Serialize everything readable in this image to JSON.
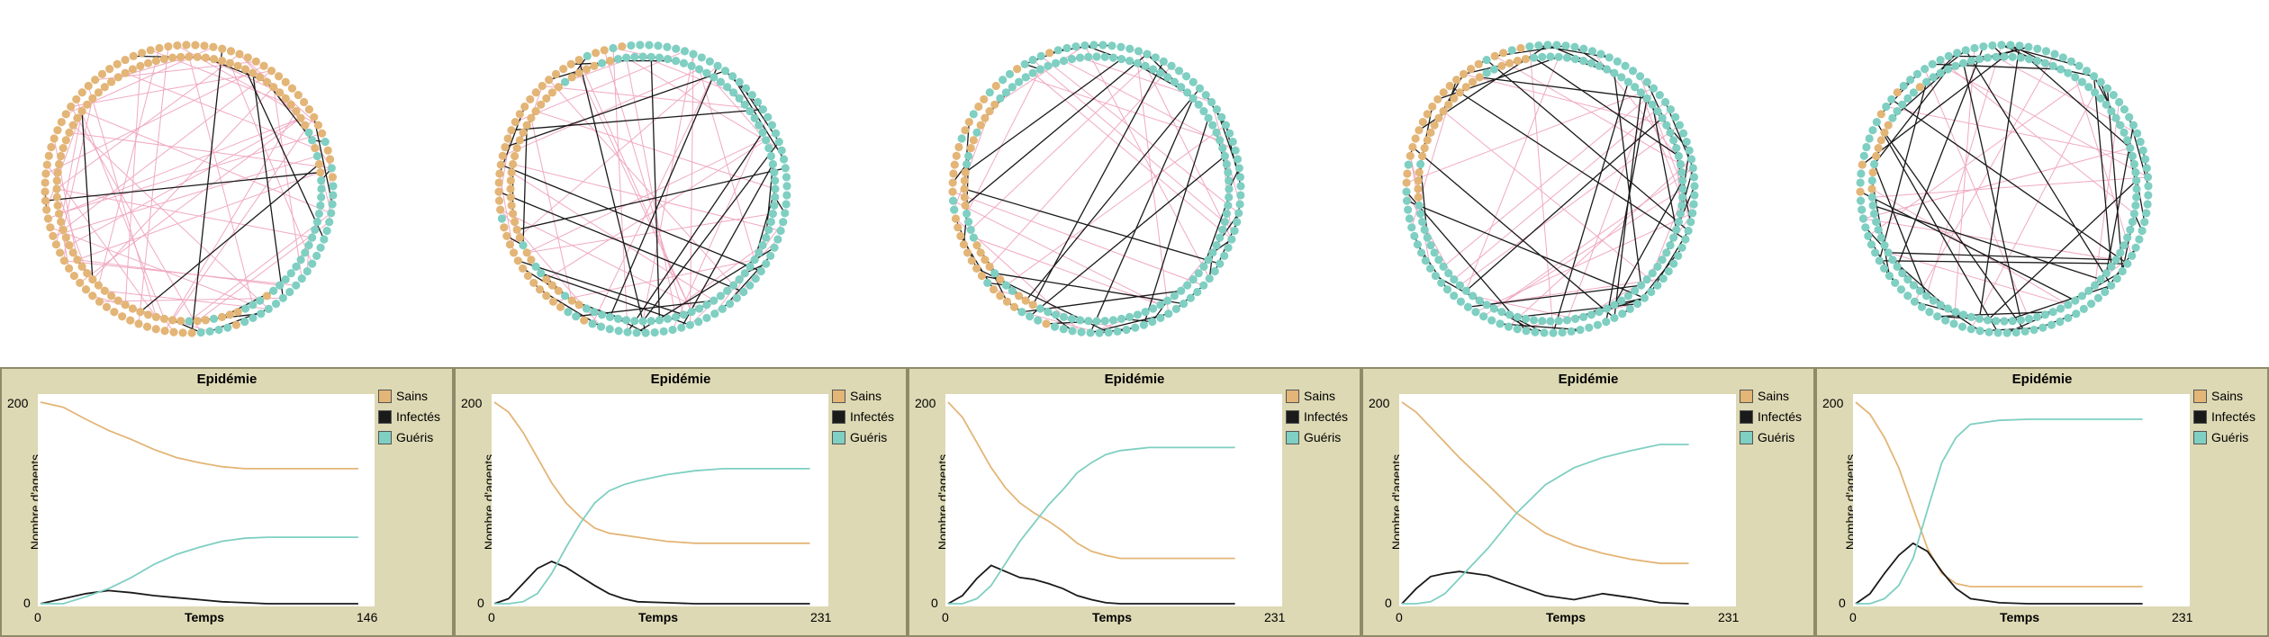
{
  "colors": {
    "sains": "#e3b577",
    "infectes": "#1a1a1a",
    "gueris": "#7fcfc2",
    "weak_link": "#f0a9c2",
    "strong_link": "#1a1a1a",
    "panel_bg": "#ddd9b4"
  },
  "panels": [
    {
      "title": "Epidémie",
      "ylabel": "Nombre d'agents",
      "xlabel": "Temps",
      "y_max_label": "200",
      "y_min_label": "0",
      "x_min_label": "0",
      "x_max_label": "146",
      "legend": [
        "Sains",
        "Infectés",
        "Guéris"
      ],
      "network": {
        "sains": 150,
        "gueris": 50,
        "strong_links": 18,
        "weak_links": 60
      }
    },
    {
      "title": "Epidémie",
      "ylabel": "Nombre d'agents",
      "xlabel": "Temps",
      "y_max_label": "200",
      "y_min_label": "0",
      "x_min_label": "0",
      "x_max_label": "231",
      "legend": [
        "Sains",
        "Infectés",
        "Guéris"
      ],
      "network": {
        "sains": 70,
        "gueris": 130,
        "strong_links": 45,
        "weak_links": 40
      }
    },
    {
      "title": "Epidémie",
      "ylabel": "Nombre d'agents",
      "xlabel": "Temps",
      "y_max_label": "200",
      "y_min_label": "0",
      "x_min_label": "0",
      "x_max_label": "231",
      "legend": [
        "Sains",
        "Infectés",
        "Guéris"
      ],
      "network": {
        "sains": 45,
        "gueris": 155,
        "strong_links": 55,
        "weak_links": 30
      }
    },
    {
      "title": "Epidémie",
      "ylabel": "Nombre d'agents",
      "xlabel": "Temps",
      "y_max_label": "200",
      "y_min_label": "0",
      "x_min_label": "0",
      "x_max_label": "231",
      "legend": [
        "Sains",
        "Infectés",
        "Guéris"
      ],
      "network": {
        "sains": 40,
        "gueris": 160,
        "strong_links": 55,
        "weak_links": 30
      }
    },
    {
      "title": "Epidémie",
      "ylabel": "Nombre d'agents",
      "xlabel": "Temps",
      "y_max_label": "200",
      "y_min_label": "0",
      "x_min_label": "0",
      "x_max_label": "231",
      "legend": [
        "Sains",
        "Infectés",
        "Guéris"
      ],
      "network": {
        "sains": 12,
        "gueris": 188,
        "strong_links": 65,
        "weak_links": 20
      }
    }
  ],
  "chart_data": [
    {
      "type": "line",
      "title": "Epidémie",
      "xlabel": "Temps",
      "ylabel": "Nombre d'agents",
      "xlim": [
        0,
        146
      ],
      "ylim": [
        0,
        200
      ],
      "series": [
        {
          "name": "Sains",
          "x": [
            0,
            10,
            20,
            30,
            40,
            50,
            60,
            70,
            80,
            90,
            100,
            110,
            120,
            130,
            140
          ],
          "values": [
            200,
            195,
            183,
            172,
            163,
            153,
            145,
            140,
            136,
            134,
            134,
            134,
            134,
            134,
            134
          ]
        },
        {
          "name": "Infectés",
          "x": [
            0,
            10,
            20,
            30,
            40,
            50,
            60,
            70,
            80,
            90,
            100,
            110,
            120,
            130,
            140
          ],
          "values": [
            0,
            5,
            10,
            13,
            11,
            8,
            6,
            4,
            2,
            1,
            0,
            0,
            0,
            0,
            0
          ]
        },
        {
          "name": "Guéris",
          "x": [
            0,
            10,
            20,
            30,
            40,
            50,
            60,
            70,
            80,
            90,
            100,
            110,
            120,
            130,
            140
          ],
          "values": [
            0,
            0,
            7,
            15,
            26,
            39,
            49,
            56,
            62,
            65,
            66,
            66,
            66,
            66,
            66
          ]
        }
      ]
    },
    {
      "type": "line",
      "title": "Epidémie",
      "xlabel": "Temps",
      "ylabel": "Nombre d'agents",
      "xlim": [
        0,
        231
      ],
      "ylim": [
        0,
        200
      ],
      "series": [
        {
          "name": "Sains",
          "x": [
            0,
            10,
            20,
            30,
            40,
            50,
            60,
            70,
            80,
            90,
            100,
            120,
            140,
            160,
            180,
            200,
            220
          ],
          "values": [
            200,
            190,
            170,
            145,
            120,
            100,
            86,
            75,
            70,
            68,
            66,
            62,
            60,
            60,
            60,
            60,
            60
          ]
        },
        {
          "name": "Infectés",
          "x": [
            0,
            10,
            20,
            30,
            40,
            50,
            60,
            70,
            80,
            90,
            100,
            120,
            140,
            160,
            180,
            200,
            220
          ],
          "values": [
            0,
            5,
            20,
            35,
            42,
            36,
            27,
            18,
            10,
            5,
            2,
            1,
            0,
            0,
            0,
            0,
            0
          ]
        },
        {
          "name": "Guéris",
          "x": [
            0,
            10,
            20,
            30,
            40,
            50,
            60,
            70,
            80,
            90,
            100,
            120,
            140,
            160,
            180,
            200,
            220
          ],
          "values": [
            0,
            0,
            2,
            10,
            30,
            56,
            80,
            100,
            112,
            118,
            122,
            128,
            132,
            134,
            134,
            134,
            134
          ]
        }
      ]
    },
    {
      "type": "line",
      "title": "Epidémie",
      "xlabel": "Temps",
      "ylabel": "Nombre d'agents",
      "xlim": [
        0,
        231
      ],
      "ylim": [
        0,
        200
      ],
      "series": [
        {
          "name": "Sains",
          "x": [
            0,
            10,
            20,
            30,
            40,
            50,
            60,
            70,
            80,
            90,
            100,
            110,
            120,
            140,
            160,
            180,
            200
          ],
          "values": [
            200,
            185,
            160,
            135,
            115,
            100,
            90,
            82,
            72,
            60,
            52,
            48,
            45,
            45,
            45,
            45,
            45
          ]
        },
        {
          "name": "Infectés",
          "x": [
            0,
            10,
            20,
            30,
            40,
            50,
            60,
            70,
            80,
            90,
            100,
            110,
            120,
            140,
            160,
            180,
            200
          ],
          "values": [
            0,
            8,
            25,
            38,
            32,
            26,
            24,
            20,
            15,
            8,
            4,
            1,
            0,
            0,
            0,
            0,
            0
          ]
        },
        {
          "name": "Guéris",
          "x": [
            0,
            10,
            20,
            30,
            40,
            50,
            60,
            70,
            80,
            90,
            100,
            110,
            120,
            140,
            160,
            180,
            200
          ],
          "values": [
            0,
            0,
            5,
            18,
            40,
            62,
            80,
            98,
            113,
            130,
            140,
            148,
            152,
            155,
            155,
            155,
            155
          ]
        }
      ]
    },
    {
      "type": "line",
      "title": "Epidémie",
      "xlabel": "Temps",
      "ylabel": "Nombre d'agents",
      "xlim": [
        0,
        231
      ],
      "ylim": [
        0,
        200
      ],
      "series": [
        {
          "name": "Sains",
          "x": [
            0,
            10,
            20,
            30,
            40,
            60,
            80,
            100,
            120,
            140,
            160,
            180,
            200
          ],
          "values": [
            200,
            190,
            175,
            160,
            145,
            118,
            90,
            70,
            58,
            50,
            44,
            40,
            40
          ]
        },
        {
          "name": "Infectés",
          "x": [
            0,
            10,
            20,
            30,
            40,
            60,
            80,
            100,
            120,
            140,
            160,
            180,
            200
          ],
          "values": [
            0,
            15,
            27,
            30,
            32,
            28,
            18,
            8,
            4,
            10,
            6,
            1,
            0
          ]
        },
        {
          "name": "Guéris",
          "x": [
            0,
            10,
            20,
            30,
            40,
            60,
            80,
            100,
            120,
            140,
            160,
            180,
            200
          ],
          "values": [
            0,
            0,
            2,
            10,
            25,
            55,
            90,
            118,
            135,
            145,
            152,
            158,
            158
          ]
        }
      ]
    },
    {
      "type": "line",
      "title": "Epidémie",
      "xlabel": "Temps",
      "ylabel": "Nombre d'agents",
      "xlim": [
        0,
        231
      ],
      "ylim": [
        0,
        200
      ],
      "series": [
        {
          "name": "Sains",
          "x": [
            0,
            10,
            20,
            30,
            40,
            50,
            60,
            70,
            80,
            100,
            120,
            140,
            160,
            180,
            200
          ],
          "values": [
            200,
            188,
            165,
            135,
            95,
            55,
            30,
            20,
            17,
            17,
            17,
            17,
            17,
            17,
            17
          ]
        },
        {
          "name": "Infectés",
          "x": [
            0,
            10,
            20,
            30,
            40,
            50,
            60,
            70,
            80,
            100,
            120,
            140,
            160,
            180,
            200
          ],
          "values": [
            0,
            10,
            30,
            48,
            60,
            52,
            32,
            15,
            5,
            1,
            0,
            0,
            0,
            0,
            0
          ]
        },
        {
          "name": "Guéris",
          "x": [
            0,
            10,
            20,
            30,
            40,
            50,
            60,
            70,
            80,
            100,
            120,
            140,
            160,
            180,
            200
          ],
          "values": [
            0,
            0,
            5,
            18,
            45,
            93,
            140,
            165,
            178,
            182,
            183,
            183,
            183,
            183,
            183
          ]
        }
      ]
    }
  ]
}
